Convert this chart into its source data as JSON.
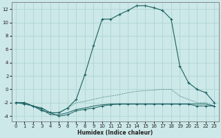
{
  "xlabel": "Humidex (Indice chaleur)",
  "xlim": [
    -0.5,
    23.5
  ],
  "ylim": [
    -4.8,
    13.0
  ],
  "yticks": [
    -4,
    -2,
    0,
    2,
    4,
    6,
    8,
    10,
    12
  ],
  "xticks": [
    0,
    1,
    2,
    3,
    4,
    5,
    6,
    7,
    8,
    9,
    10,
    11,
    12,
    13,
    14,
    15,
    16,
    17,
    18,
    19,
    20,
    21,
    22,
    23
  ],
  "bg_color": "#cce8e8",
  "grid_color": "#b0d4d4",
  "line_color": "#1a6060",
  "line1_x": [
    0,
    1,
    2,
    3,
    4,
    5,
    6,
    7,
    8,
    9,
    10,
    11,
    12,
    13,
    14,
    15,
    16,
    17,
    18,
    19,
    20,
    21,
    22,
    23
  ],
  "line1_y": [
    -2,
    -2,
    -2.5,
    -2.8,
    -3.5,
    -3.5,
    -2.8,
    -1.5,
    2.2,
    6.5,
    10.5,
    10.5,
    11.2,
    11.8,
    12.5,
    12.5,
    12.2,
    11.8,
    10.5,
    3.5,
    1.0,
    0.0,
    -0.5,
    -2.0
  ],
  "line2_x": [
    0,
    1,
    2,
    3,
    4,
    5,
    6,
    7,
    8,
    9,
    10,
    11,
    12,
    13,
    14,
    15,
    16,
    17,
    18,
    19,
    20,
    21,
    22,
    23
  ],
  "line2_y": [
    -2,
    -2,
    -2.5,
    -2.8,
    -3.5,
    -3.5,
    -2.8,
    -2,
    -1.8,
    -1.5,
    -1.2,
    -1.0,
    -0.8,
    -0.5,
    -0.3,
    -0.2,
    -0.1,
    0.0,
    0.0,
    -1.0,
    -1.5,
    -2,
    -2,
    -2.5
  ],
  "line3_x": [
    0,
    1,
    2,
    3,
    4,
    5,
    6,
    7,
    8,
    9,
    10,
    11,
    12,
    13,
    14,
    15,
    16,
    17,
    18,
    19,
    20,
    21,
    22,
    23
  ],
  "line3_y": [
    -2,
    -2,
    -2.5,
    -3,
    -3.8,
    -3.8,
    -3.5,
    -3,
    -2.8,
    -2.5,
    -2.3,
    -2.2,
    -2.2,
    -2.2,
    -2.2,
    -2.2,
    -2.2,
    -2.2,
    -2.2,
    -2.2,
    -2.2,
    -2.2,
    -2.2,
    -2.5
  ],
  "line4_x": [
    0,
    1,
    2,
    3,
    4,
    5,
    6,
    7,
    8,
    9,
    10,
    11,
    12,
    13,
    14,
    15,
    16,
    17,
    18,
    19,
    20,
    21,
    22,
    23
  ],
  "line4_y": [
    -2,
    -2.2,
    -2.5,
    -3.2,
    -3.5,
    -4.0,
    -3.8,
    -3.2,
    -3.0,
    -2.8,
    -2.5,
    -2.3,
    -2.2,
    -2.2,
    -2.2,
    -2.2,
    -2.2,
    -2.2,
    -2.2,
    -2.2,
    -2.2,
    -2.5,
    -2.5,
    -2.5
  ]
}
